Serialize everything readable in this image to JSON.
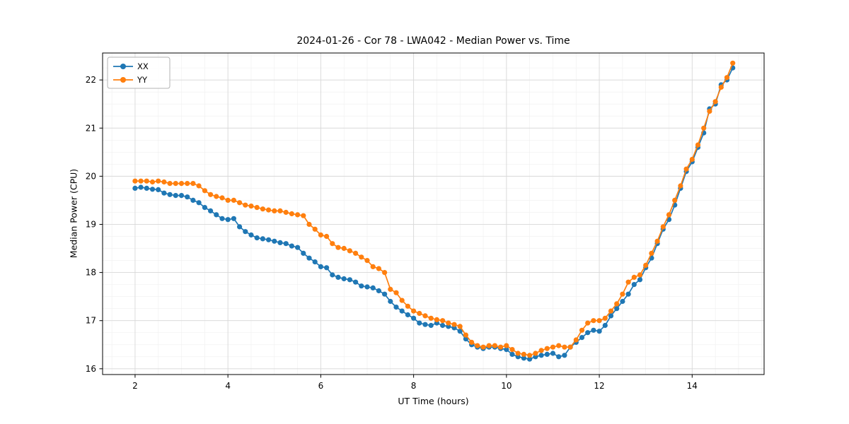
{
  "chart_data": {
    "type": "line",
    "title": "2024-01-26 - Cor 78 - LWA042 - Median Power vs. Time",
    "xlabel": "UT Time (hours)",
    "ylabel": "Median Power (CPU)",
    "xlim": [
      1.3,
      15.55
    ],
    "ylim": [
      15.88,
      22.56
    ],
    "xticks": [
      2,
      4,
      6,
      8,
      10,
      12,
      14
    ],
    "yticks": [
      16,
      17,
      18,
      19,
      20,
      21,
      22
    ],
    "grid": true,
    "legend_position": "upper left",
    "x": [
      2,
      2.125,
      2.25,
      2.375,
      2.5,
      2.625,
      2.75,
      2.875,
      3,
      3.125,
      3.25,
      3.375,
      3.5,
      3.625,
      3.75,
      3.875,
      4,
      4.125,
      4.25,
      4.375,
      4.5,
      4.625,
      4.75,
      4.875,
      5,
      5.125,
      5.25,
      5.375,
      5.5,
      5.625,
      5.75,
      5.875,
      6,
      6.125,
      6.25,
      6.375,
      6.5,
      6.625,
      6.75,
      6.875,
      7,
      7.125,
      7.25,
      7.375,
      7.5,
      7.625,
      7.75,
      7.875,
      8,
      8.125,
      8.25,
      8.375,
      8.5,
      8.625,
      8.75,
      8.875,
      9,
      9.125,
      9.25,
      9.375,
      9.5,
      9.625,
      9.75,
      9.875,
      10,
      10.125,
      10.25,
      10.375,
      10.5,
      10.625,
      10.75,
      10.875,
      11,
      11.125,
      11.25,
      11.375,
      11.5,
      11.625,
      11.75,
      11.875,
      12,
      12.125,
      12.25,
      12.375,
      12.5,
      12.625,
      12.75,
      12.875,
      13,
      13.125,
      13.25,
      13.375,
      13.5,
      13.625,
      13.75,
      13.875,
      14,
      14.125,
      14.25,
      14.375,
      14.5,
      14.625,
      14.75,
      14.875
    ],
    "series": [
      {
        "name": "XX",
        "color": "#1f77b4",
        "marker": "circle",
        "values": [
          19.75,
          19.77,
          19.75,
          19.73,
          19.72,
          19.65,
          19.62,
          19.6,
          19.6,
          19.57,
          19.5,
          19.45,
          19.35,
          19.28,
          19.2,
          19.12,
          19.1,
          19.12,
          18.95,
          18.85,
          18.78,
          18.72,
          18.7,
          18.68,
          18.65,
          18.62,
          18.6,
          18.55,
          18.52,
          18.4,
          18.3,
          18.22,
          18.12,
          18.1,
          17.95,
          17.9,
          17.87,
          17.85,
          17.8,
          17.72,
          17.7,
          17.68,
          17.62,
          17.55,
          17.4,
          17.28,
          17.2,
          17.12,
          17.05,
          16.95,
          16.92,
          16.9,
          16.95,
          16.9,
          16.88,
          16.85,
          16.78,
          16.62,
          16.5,
          16.45,
          16.42,
          16.45,
          16.45,
          16.42,
          16.4,
          16.3,
          16.25,
          16.22,
          16.2,
          16.25,
          16.28,
          16.3,
          16.32,
          16.25,
          16.28,
          16.45,
          16.55,
          16.65,
          16.75,
          16.8,
          16.78,
          16.9,
          17.1,
          17.25,
          17.4,
          17.55,
          17.75,
          17.85,
          18.1,
          18.3,
          18.6,
          18.9,
          19.1,
          19.4,
          19.75,
          20.1,
          20.3,
          20.6,
          20.9,
          21.4,
          21.5,
          21.9,
          22.0,
          22.25
        ]
      },
      {
        "name": "YY",
        "color": "#ff7f0e",
        "marker": "circle",
        "values": [
          19.9,
          19.9,
          19.9,
          19.88,
          19.9,
          19.88,
          19.85,
          19.85,
          19.85,
          19.85,
          19.85,
          19.8,
          19.7,
          19.62,
          19.58,
          19.55,
          19.5,
          19.5,
          19.45,
          19.4,
          19.38,
          19.35,
          19.32,
          19.3,
          19.28,
          19.28,
          19.25,
          19.22,
          19.2,
          19.18,
          19.0,
          18.9,
          18.78,
          18.75,
          18.6,
          18.52,
          18.5,
          18.45,
          18.4,
          18.32,
          18.25,
          18.12,
          18.08,
          18.0,
          17.65,
          17.58,
          17.42,
          17.3,
          17.2,
          17.15,
          17.1,
          17.05,
          17.02,
          17.0,
          16.95,
          16.92,
          16.88,
          16.7,
          16.55,
          16.48,
          16.45,
          16.48,
          16.48,
          16.45,
          16.48,
          16.4,
          16.32,
          16.3,
          16.28,
          16.32,
          16.38,
          16.42,
          16.45,
          16.48,
          16.45,
          16.45,
          16.6,
          16.8,
          16.95,
          17.0,
          17.0,
          17.05,
          17.2,
          17.35,
          17.55,
          17.8,
          17.9,
          17.95,
          18.15,
          18.4,
          18.65,
          18.95,
          19.2,
          19.5,
          19.8,
          20.15,
          20.35,
          20.65,
          21.0,
          21.35,
          21.55,
          21.85,
          22.05,
          22.35
        ]
      }
    ],
    "colors": {
      "grid_major": "#d8d8d8",
      "grid_minor": "#efefef",
      "frame": "#000000",
      "legend_border": "#b3b3b3"
    }
  }
}
